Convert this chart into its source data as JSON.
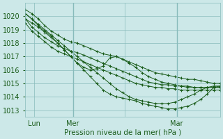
{
  "title": "Pression niveau de la mer( hPa )",
  "bg_color": "#cce8e8",
  "grid_color": "#88bbbb",
  "line_color": "#1a5c1a",
  "ylim": [
    1012.5,
    1021.0
  ],
  "xlim": [
    0,
    90
  ],
  "yticks": [
    1013,
    1014,
    1015,
    1016,
    1017,
    1018,
    1019,
    1020
  ],
  "xtick_positions": [
    4,
    22,
    46,
    70
  ],
  "xtick_labels": [
    "Lun",
    "Mer",
    "",
    "Mar"
  ],
  "vline_positions": [
    22,
    70
  ],
  "series": [
    {
      "x": [
        0,
        3,
        6,
        9,
        12,
        15,
        18,
        21,
        24,
        27,
        30,
        33,
        36,
        39,
        42,
        45,
        48,
        51,
        54,
        57,
        60,
        63,
        66,
        69,
        72,
        75,
        78,
        81,
        84,
        87,
        90
      ],
      "y": [
        1020.5,
        1020.2,
        1019.8,
        1019.3,
        1018.9,
        1018.6,
        1018.3,
        1018.1,
        1018.0,
        1017.8,
        1017.6,
        1017.4,
        1017.2,
        1017.1,
        1017.0,
        1016.8,
        1016.6,
        1016.4,
        1016.2,
        1016.0,
        1015.8,
        1015.7,
        1015.6,
        1015.5,
        1015.4,
        1015.3,
        1015.3,
        1015.2,
        1015.1,
        1015.0,
        1015.0
      ]
    },
    {
      "x": [
        0,
        3,
        6,
        9,
        12,
        15,
        18,
        21,
        24,
        27,
        30,
        33,
        36,
        39,
        42,
        45,
        48,
        51,
        54,
        57,
        60,
        63,
        66,
        69,
        72,
        75,
        78,
        81,
        84,
        87,
        90
      ],
      "y": [
        1019.8,
        1019.2,
        1018.8,
        1018.4,
        1018.1,
        1017.8,
        1017.6,
        1017.4,
        1017.3,
        1017.1,
        1016.9,
        1016.7,
        1016.5,
        1016.3,
        1016.1,
        1015.9,
        1015.7,
        1015.5,
        1015.3,
        1015.1,
        1015.0,
        1014.9,
        1014.9,
        1014.8,
        1014.8,
        1014.8,
        1014.7,
        1014.7,
        1014.7,
        1014.7,
        1014.7
      ]
    },
    {
      "x": [
        0,
        3,
        6,
        9,
        12,
        15,
        18,
        21,
        24,
        27,
        30,
        33,
        36,
        39,
        42,
        45,
        48,
        51,
        54,
        57,
        60,
        63,
        66,
        69,
        72,
        75,
        78,
        81,
        84,
        87,
        90
      ],
      "y": [
        1019.5,
        1018.9,
        1018.5,
        1018.1,
        1017.7,
        1017.4,
        1017.2,
        1017.0,
        1016.8,
        1016.6,
        1016.4,
        1016.2,
        1016.0,
        1015.8,
        1015.6,
        1015.4,
        1015.2,
        1015.0,
        1014.9,
        1014.8,
        1014.7,
        1014.7,
        1014.6,
        1014.6,
        1014.5,
        1014.5,
        1014.5,
        1014.5,
        1014.5,
        1014.5,
        1014.5
      ]
    },
    {
      "x": [
        0,
        3,
        6,
        9,
        12,
        15,
        18,
        21,
        24,
        27,
        30,
        33,
        36,
        39,
        42,
        45,
        48,
        51,
        54,
        57,
        60,
        63,
        66,
        69,
        72,
        75,
        78,
        81,
        84,
        87,
        90
      ],
      "y": [
        1019.8,
        1019.5,
        1019.2,
        1018.8,
        1018.4,
        1018.0,
        1017.5,
        1017.0,
        1016.5,
        1016.2,
        1016.0,
        1016.1,
        1016.3,
        1016.9,
        1017.0,
        1016.8,
        1016.5,
        1016.2,
        1015.8,
        1015.5,
        1015.3,
        1015.1,
        1015.0,
        1014.9,
        1014.8,
        1014.7,
        1014.7,
        1014.7,
        1014.7,
        1014.7,
        1014.7
      ]
    },
    {
      "x": [
        0,
        3,
        6,
        9,
        12,
        15,
        18,
        21,
        24,
        27,
        30,
        33,
        36,
        39,
        42,
        45,
        48,
        51,
        54,
        57,
        60,
        63,
        66,
        69,
        72,
        75,
        78,
        81,
        84,
        87,
        90
      ],
      "y": [
        1020.2,
        1019.8,
        1019.3,
        1018.9,
        1018.5,
        1018.0,
        1017.5,
        1017.0,
        1016.5,
        1016.0,
        1015.5,
        1015.0,
        1014.5,
        1014.2,
        1014.0,
        1013.9,
        1013.8,
        1013.7,
        1013.5,
        1013.4,
        1013.3,
        1013.2,
        1013.1,
        1013.1,
        1013.2,
        1013.3,
        1013.5,
        1013.8,
        1014.2,
        1014.7,
        1014.8
      ]
    },
    {
      "x": [
        0,
        3,
        6,
        9,
        12,
        15,
        18,
        21,
        24,
        27,
        30,
        33,
        36,
        39,
        42,
        45,
        48,
        51,
        54,
        57,
        60,
        63,
        66,
        69,
        72,
        75,
        78,
        81,
        84,
        87,
        90
      ],
      "y": [
        1020.2,
        1019.8,
        1019.4,
        1019.0,
        1018.6,
        1018.2,
        1017.8,
        1017.4,
        1017.0,
        1016.6,
        1016.2,
        1015.8,
        1015.4,
        1015.0,
        1014.6,
        1014.3,
        1014.0,
        1013.8,
        1013.7,
        1013.6,
        1013.5,
        1013.5,
        1013.5,
        1013.6,
        1013.8,
        1014.0,
        1014.2,
        1014.5,
        1014.7,
        1014.8,
        1014.8
      ]
    }
  ]
}
